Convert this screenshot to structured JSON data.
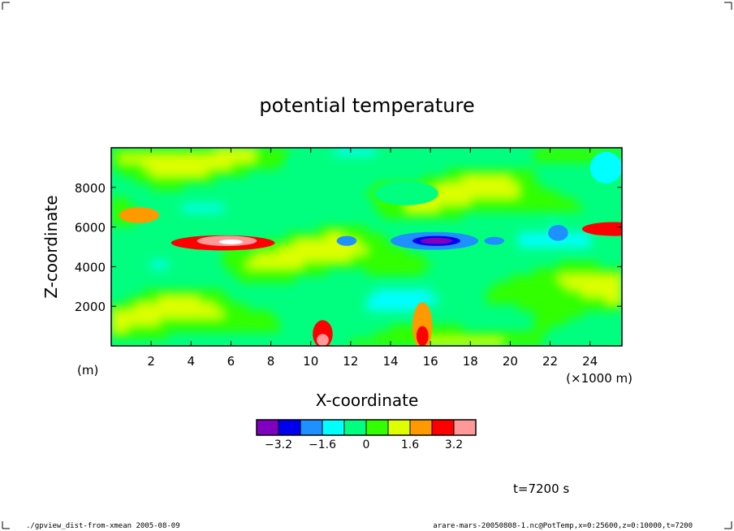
{
  "chart_data": {
    "type": "heatmap",
    "title": "potential temperature",
    "xlabel": "X-coordinate",
    "ylabel": "Z-coordinate",
    "x_unit_note": "(×1000 m)",
    "y_unit_note": "(m)",
    "x_ticks": [
      2,
      4,
      6,
      8,
      10,
      12,
      14,
      16,
      18,
      20,
      22,
      24
    ],
    "x_tick_labels": [
      "2",
      "4",
      "6",
      "8",
      "10",
      "12",
      "14",
      "16",
      "18",
      "20",
      "22",
      "24"
    ],
    "y_ticks": [
      2000,
      4000,
      6000,
      8000
    ],
    "y_tick_labels": [
      "2000",
      "4000",
      "6000",
      "8000"
    ],
    "xlim": [
      0,
      25.6
    ],
    "ylim": [
      0,
      10000
    ],
    "legend": {
      "colors": [
        "#7f00bf",
        "#0000ee",
        "#1e90ff",
        "#00ffff",
        "#00ff7f",
        "#33ff00",
        "#ddff00",
        "#ff9900",
        "#ff0000",
        "#ff9999"
      ],
      "tick_labels": [
        "−3.2",
        "−1.6",
        "0",
        "1.6",
        "3.2"
      ],
      "tick_values": [
        -3.2,
        -1.6,
        0,
        1.6,
        3.2
      ]
    },
    "time_label": "t=7200 s",
    "footer_left": "./gpview_dist-from-xmean  2005-08-09",
    "footer_right": "arare-mars-20050808-1.nc@PotTemp,x=0:25600,z=0:10000,t=7200",
    "features": [
      {
        "x": 5.6,
        "z": 5200,
        "rx": 2.6,
        "rz": 380,
        "level": 8
      },
      {
        "x": 5.8,
        "z": 5300,
        "rx": 1.5,
        "rz": 260,
        "level": 9
      },
      {
        "x": 6.0,
        "z": 5250,
        "rx": 0.6,
        "rz": 120,
        "level": 10
      },
      {
        "x": 16.2,
        "z": 5300,
        "rx": 2.2,
        "rz": 450,
        "level": 2
      },
      {
        "x": 16.3,
        "z": 5300,
        "rx": 1.2,
        "rz": 250,
        "level": 1
      },
      {
        "x": 16.3,
        "z": 5300,
        "rx": 0.8,
        "rz": 160,
        "level": 0
      },
      {
        "x": 11.8,
        "z": 5300,
        "rx": 0.5,
        "rz": 250,
        "level": 2
      },
      {
        "x": 19.2,
        "z": 5300,
        "rx": 0.5,
        "rz": 200,
        "level": 2
      },
      {
        "x": 22.4,
        "z": 5700,
        "rx": 0.5,
        "rz": 400,
        "level": 2
      },
      {
        "x": 25.2,
        "z": 5900,
        "rx": 1.6,
        "rz": 350,
        "level": 8
      },
      {
        "x": 1.4,
        "z": 6600,
        "rx": 1.0,
        "rz": 400,
        "level": 7
      },
      {
        "x": 10.6,
        "z": 600,
        "rx": 0.5,
        "rz": 700,
        "level": 8
      },
      {
        "x": 10.6,
        "z": 300,
        "rx": 0.3,
        "rz": 300,
        "level": 9
      },
      {
        "x": 15.6,
        "z": 1000,
        "rx": 0.5,
        "rz": 1200,
        "level": 7
      },
      {
        "x": 15.6,
        "z": 500,
        "rx": 0.3,
        "rz": 500,
        "level": 8
      },
      {
        "x": 14.8,
        "z": 7700,
        "rx": 1.6,
        "rz": 600,
        "level": 4
      },
      {
        "x": 9.4,
        "z": 9300,
        "rx": 0.6,
        "rz": 300,
        "level": 4
      },
      {
        "x": 24.8,
        "z": 9000,
        "rx": 0.8,
        "rz": 800,
        "level": 3
      }
    ]
  }
}
